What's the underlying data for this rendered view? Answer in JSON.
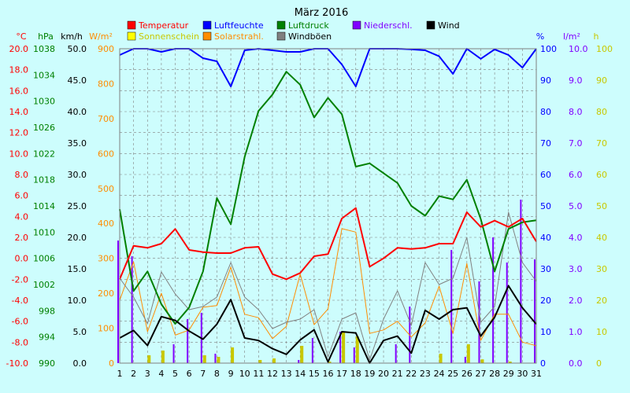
{
  "chart_data": {
    "type": "line",
    "title": "März 2016",
    "x": [
      1,
      2,
      3,
      4,
      5,
      6,
      7,
      8,
      9,
      10,
      11,
      12,
      13,
      14,
      15,
      16,
      17,
      18,
      19,
      20,
      21,
      22,
      23,
      24,
      25,
      26,
      27,
      28,
      29,
      30,
      31
    ],
    "axes": [
      {
        "id": "temp",
        "unit": "°C",
        "color": "#ff0000",
        "side": "left",
        "min": -10,
        "max": 20,
        "ticks": [
          "20.0",
          "18.0",
          "16.0",
          "14.0",
          "12.0",
          "10.0",
          "8.0",
          "6.0",
          "4.0",
          "2.0",
          "0.0",
          "-2.0",
          "-4.0",
          "-6.0",
          "-8.0",
          "-10.0"
        ]
      },
      {
        "id": "press",
        "unit": "hPa",
        "color": "#008000",
        "side": "left",
        "min": 990,
        "max": 1038,
        "ticks": [
          "1038",
          "1034",
          "1030",
          "1026",
          "1022",
          "1018",
          "1014",
          "1010",
          "1006",
          "1002",
          "998",
          "994",
          "990"
        ]
      },
      {
        "id": "wind",
        "unit": "km/h",
        "color": "#000000",
        "side": "left",
        "min": 0,
        "max": 50,
        "ticks": [
          "50.0",
          "45.0",
          "40.0",
          "35.0",
          "30.0",
          "25.0",
          "20.0",
          "15.0",
          "10.0",
          "5.0",
          "0.0"
        ]
      },
      {
        "id": "solar",
        "unit": "W/m²",
        "color": "#ff8c00",
        "side": "left",
        "min": 0,
        "max": 900,
        "ticks": [
          "900",
          "800",
          "700",
          "600",
          "500",
          "400",
          "300",
          "200",
          "100",
          "0"
        ]
      },
      {
        "id": "hum",
        "unit": "%",
        "color": "#0000ff",
        "side": "right",
        "min": 0,
        "max": 100,
        "ticks": [
          "100",
          "90",
          "80",
          "70",
          "60",
          "50",
          "40",
          "30",
          "20",
          "10",
          "0"
        ]
      },
      {
        "id": "rain",
        "unit": "l/m²",
        "color": "#8000ff",
        "side": "right",
        "min": 0,
        "max": 10,
        "ticks": [
          "10.0",
          "9.0",
          "8.0",
          "7.0",
          "6.0",
          "5.0",
          "4.0",
          "3.0",
          "2.0",
          "1.0",
          "0.0"
        ]
      },
      {
        "id": "sun",
        "unit": "h",
        "color": "#c8c800",
        "side": "right",
        "min": 0,
        "max": 100,
        "ticks": [
          "100",
          "90",
          "80",
          "70",
          "60",
          "50",
          "40",
          "30",
          "20",
          "10",
          "0"
        ]
      }
    ],
    "legend": [
      {
        "label": "Temperatur",
        "color": "#ff0000",
        "text_color": "#ff0000"
      },
      {
        "label": "Luftfeuchte",
        "color": "#0000ff",
        "text_color": "#0000ff"
      },
      {
        "label": "Luftdruck",
        "color": "#008000",
        "text_color": "#008000"
      },
      {
        "label": "Niederschl.",
        "color": "#8000ff",
        "text_color": "#8000ff"
      },
      {
        "label": "Wind",
        "color": "#000000",
        "text_color": "#000000"
      },
      {
        "label": "Sonnenschein",
        "color": "#ffff00",
        "text_color": "#c8c800"
      },
      {
        "label": "Solarstrahl.",
        "color": "#ff8c00",
        "text_color": "#ff8c00"
      },
      {
        "label": "Windböen",
        "color": "#808080",
        "text_color": "#000000"
      }
    ],
    "series": [
      {
        "name": "Temperatur",
        "axis": "temp",
        "color": "#ff0000",
        "kind": "line",
        "width": 2,
        "values": [
          -2.0,
          1.2,
          1.0,
          1.4,
          2.8,
          0.8,
          0.6,
          0.5,
          0.5,
          1.0,
          1.1,
          -1.5,
          -2.0,
          -1.4,
          0.2,
          0.4,
          3.8,
          4.8,
          -0.8,
          0.0,
          1.0,
          0.9,
          1.0,
          1.4,
          1.4,
          4.4,
          3.0,
          3.6,
          3.0,
          3.8,
          1.6
        ]
      },
      {
        "name": "Luftfeuchte",
        "axis": "hum",
        "color": "#0000ff",
        "kind": "line",
        "width": 2,
        "values": [
          98,
          100,
          100,
          99,
          100,
          100,
          97,
          96,
          88,
          99.5,
          100,
          99.5,
          99,
          99,
          100,
          100,
          95,
          88,
          100,
          100,
          100,
          99.8,
          99.5,
          97.6,
          92,
          100,
          96.8,
          99.8,
          98,
          94,
          100
        ]
      },
      {
        "name": "Luftdruck",
        "axis": "press",
        "color": "#008000",
        "kind": "line",
        "width": 2,
        "values": [
          1013.5,
          1001,
          1004,
          999,
          996,
          998.5,
          1004,
          1015.2,
          1011.2,
          1021.5,
          1028.5,
          1031,
          1034.5,
          1032.5,
          1027.5,
          1030.5,
          1028,
          1020,
          1020.5,
          1019,
          1017.5,
          1014,
          1012.5,
          1015.5,
          1015,
          1018,
          1012,
          1004,
          1010.5,
          1011.5,
          1011.8
        ]
      },
      {
        "name": "Wind",
        "axis": "wind",
        "color": "#000000",
        "kind": "line",
        "width": 2,
        "values": [
          4.0,
          5.2,
          2.8,
          7.4,
          6.8,
          5.1,
          3.8,
          6.2,
          10.1,
          4.0,
          3.6,
          2.3,
          1.4,
          3.7,
          5.3,
          0.2,
          5.0,
          4.8,
          0.0,
          3.6,
          4.3,
          1.6,
          8.4,
          7.0,
          8.5,
          8.8,
          4.3,
          7.3,
          12.3,
          8.8,
          6.2
        ]
      },
      {
        "name": "Windböen",
        "axis": "wind",
        "color": "#808080",
        "kind": "line",
        "width": 1,
        "values": [
          13.5,
          10.5,
          6.3,
          14.5,
          11.0,
          8.5,
          9.0,
          10.5,
          16.0,
          10.5,
          8.5,
          5.5,
          6.5,
          7.0,
          8.5,
          1.0,
          7.0,
          8.0,
          0.5,
          7.0,
          11.5,
          6.0,
          16.0,
          12.5,
          13.5,
          20.0,
          6.5,
          9.0,
          24.0,
          16.0,
          13.0
        ]
      },
      {
        "name": "Solarstrahl.",
        "axis": "solar",
        "color": "#ff8c00",
        "kind": "line",
        "width": 1,
        "values": [
          180,
          290,
          90,
          200,
          80,
          95,
          160,
          165,
          275,
          140,
          130,
          70,
          105,
          255,
          110,
          155,
          385,
          375,
          85,
          95,
          120,
          75,
          115,
          220,
          85,
          285,
          65,
          140,
          140,
          60,
          50
        ]
      },
      {
        "name": "Sonnenschein",
        "axis": "sun",
        "color": "#c8c800",
        "kind": "bar",
        "width": 4,
        "values": [
          0,
          0,
          2.5,
          4,
          0,
          0,
          2.5,
          2,
          5,
          0,
          1,
          1.5,
          0,
          5.5,
          0,
          0.5,
          10,
          8.5,
          0,
          0,
          0,
          0,
          0,
          3,
          0,
          6,
          1.2,
          0,
          0.5,
          0,
          0
        ]
      },
      {
        "name": "Niederschl.",
        "axis": "rain",
        "color": "#8000ff",
        "kind": "bar",
        "width": 2,
        "values": [
          3.9,
          3.4,
          0,
          0,
          0.6,
          1.4,
          1.6,
          0.3,
          0,
          0,
          0,
          0,
          0,
          0.1,
          0.8,
          0,
          1.0,
          0.5,
          0,
          0,
          0.6,
          1.8,
          0,
          0,
          3.6,
          0.2,
          2.6,
          4.0,
          3.2,
          5.2,
          3.3
        ]
      }
    ],
    "grid": true,
    "plot_bg": "#cdfdfd",
    "grid_color": "#808080",
    "legend_position": "top"
  }
}
